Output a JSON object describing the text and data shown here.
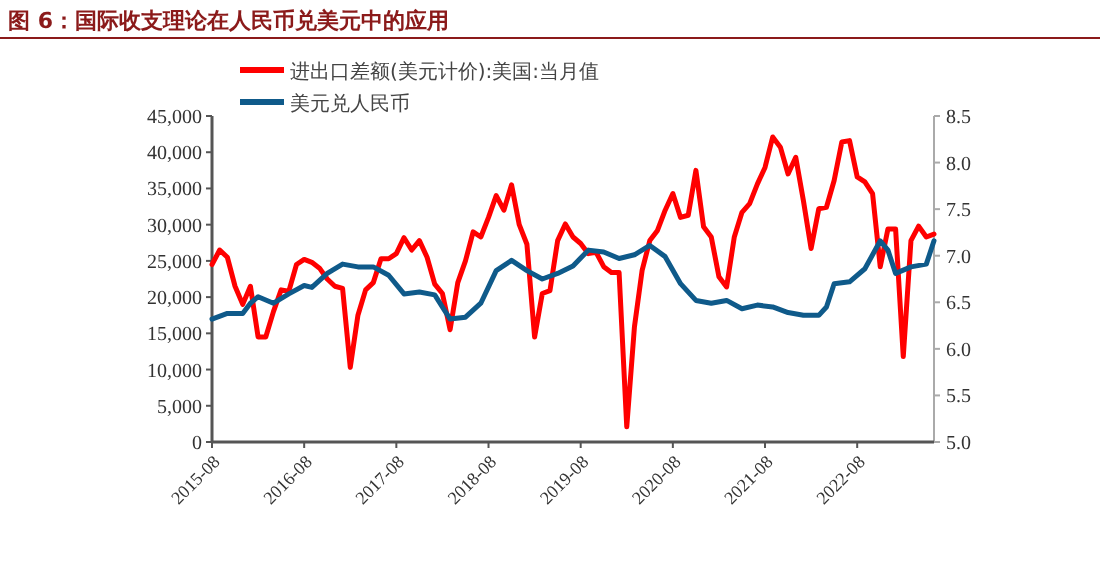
{
  "chart_data": {
    "type": "line",
    "title": "图 6：国际收支理论在人民币兑美元中的应用",
    "legend": "top",
    "grid": false,
    "marker": "none",
    "line_style": "solid",
    "xlim": [
      "2015-08",
      "2023-06"
    ],
    "xticks": [
      "2015-08",
      "2016-08",
      "2017-08",
      "2018-08",
      "2019-08",
      "2020-08",
      "2021-08",
      "2022-08"
    ],
    "ylim": [
      0,
      45000
    ],
    "yticks": [
      0,
      {
        "value": 5000,
        "label": "5,000"
      },
      {
        "value": 10000,
        "label": "10,000"
      },
      {
        "value": 15000,
        "label": "15,000"
      },
      {
        "value": 20000,
        "label": "20,000"
      },
      {
        "value": 25000,
        "label": "25,000"
      },
      {
        "value": 30000,
        "label": "30,000"
      },
      {
        "value": 35000,
        "label": "35,000"
      },
      {
        "value": 40000,
        "label": "40,000"
      },
      {
        "value": 45000,
        "label": "45,000"
      }
    ],
    "y2lim": [
      5.0,
      8.5
    ],
    "y2ticks": [
      {
        "value": 5.0,
        "label": "5.0"
      },
      {
        "value": 5.5,
        "label": "5.5"
      },
      {
        "value": 6.0,
        "label": "6.0"
      },
      {
        "value": 6.5,
        "label": "6.5"
      },
      {
        "value": 7.0,
        "label": "7.0"
      },
      {
        "value": 7.5,
        "label": "7.5"
      },
      {
        "value": 8.0,
        "label": "8.0"
      },
      {
        "value": 8.5,
        "label": "8.5"
      }
    ],
    "series": [
      {
        "name": "进出口差额(美元计价):美国:当月值",
        "color": "#ff0000",
        "x": [
          "2015-08",
          "2015-09",
          "2015-10",
          "2015-11",
          "2015-12",
          "2016-01",
          "2016-02",
          "2016-03",
          "2016-04",
          "2016-05",
          "2016-06",
          "2016-07",
          "2016-08",
          "2016-09",
          "2016-10",
          "2016-11",
          "2016-12",
          "2017-01",
          "2017-02",
          "2017-03",
          "2017-04",
          "2017-05",
          "2017-06",
          "2017-07",
          "2017-08",
          "2017-09",
          "2017-10",
          "2017-11",
          "2017-12",
          "2018-01",
          "2018-02",
          "2018-03",
          "2018-04",
          "2018-05",
          "2018-06",
          "2018-07",
          "2018-08",
          "2018-09",
          "2018-10",
          "2018-11",
          "2018-12",
          "2019-01",
          "2019-02",
          "2019-03",
          "2019-04",
          "2019-05",
          "2019-06",
          "2019-07",
          "2019-08",
          "2019-09",
          "2019-10",
          "2019-11",
          "2019-12",
          "2020-01",
          "2020-02",
          "2020-03",
          "2020-04",
          "2020-05",
          "2020-06",
          "2020-07",
          "2020-08",
          "2020-09",
          "2020-10",
          "2020-11",
          "2020-12",
          "2021-01",
          "2021-02",
          "2021-03",
          "2021-04",
          "2021-05",
          "2021-06",
          "2021-07",
          "2021-08",
          "2021-09",
          "2021-10",
          "2021-11",
          "2021-12",
          "2022-01",
          "2022-02",
          "2022-03",
          "2022-04",
          "2022-05",
          "2022-06",
          "2022-07",
          "2022-08",
          "2022-09",
          "2022-10",
          "2022-11",
          "2022-12",
          "2023-01",
          "2023-02",
          "2023-03",
          "2023-04",
          "2023-05",
          "2023-06"
        ],
        "values": [
          24500,
          26500,
          25500,
          21500,
          19000,
          21500,
          14500,
          14500,
          18000,
          21000,
          20800,
          24500,
          25200,
          24800,
          24000,
          22500,
          21500,
          21200,
          10300,
          17500,
          21000,
          22000,
          25300,
          25300,
          26000,
          28200,
          26500,
          27800,
          25500,
          21800,
          20500,
          15500,
          22000,
          25000,
          29000,
          28300,
          31000,
          34000,
          32000,
          35500,
          30000,
          27300,
          14500,
          20500,
          20900,
          27800,
          30100,
          28300,
          27400,
          26000,
          26200,
          24200,
          23400,
          23400,
          2100,
          15900,
          23700,
          27800,
          29200,
          32000,
          34300,
          31000,
          31300,
          37500,
          29700,
          28300,
          22800,
          21400,
          28300,
          31700,
          32900,
          35600,
          37900,
          42100,
          40700,
          37000,
          39300,
          33300,
          26700,
          32200,
          32400,
          36100,
          41400,
          41600,
          36600,
          35900,
          34300,
          24200,
          29400,
          29400,
          11800,
          27800,
          29800,
          28300,
          28700
        ]
      },
      {
        "name": "美元兑人民币",
        "color": "#0f5a8a",
        "axis": "y2",
        "x": [
          "2015-08",
          "2015-10",
          "2015-12",
          "2016-01",
          "2016-02",
          "2016-04",
          "2016-06",
          "2016-08",
          "2016-09",
          "2016-11",
          "2017-01",
          "2017-03",
          "2017-05",
          "2017-07",
          "2017-09",
          "2017-11",
          "2018-01",
          "2018-03",
          "2018-05",
          "2018-07",
          "2018-09",
          "2018-11",
          "2019-01",
          "2019-03",
          "2019-05",
          "2019-07",
          "2019-09",
          "2019-11",
          "2020-01",
          "2020-03",
          "2020-05",
          "2020-07",
          "2020-09",
          "2020-11",
          "2021-01",
          "2021-03",
          "2021-05",
          "2021-07",
          "2021-09",
          "2021-11",
          "2022-01",
          "2022-03",
          "2022-04",
          "2022-05",
          "2022-07",
          "2022-09",
          "2022-11",
          "2022-12",
          "2023-01",
          "2023-03",
          "2023-05",
          "2023-06"
        ],
        "values": [
          6.32,
          6.38,
          6.38,
          6.49,
          6.56,
          6.49,
          6.59,
          6.68,
          6.66,
          6.81,
          6.91,
          6.88,
          6.88,
          6.79,
          6.59,
          6.61,
          6.58,
          6.32,
          6.34,
          6.49,
          6.84,
          6.95,
          6.84,
          6.75,
          6.81,
          6.89,
          7.06,
          7.04,
          6.97,
          7.01,
          7.11,
          6.99,
          6.7,
          6.52,
          6.49,
          6.52,
          6.43,
          6.47,
          6.45,
          6.39,
          6.36,
          6.36,
          6.45,
          6.7,
          6.72,
          6.86,
          7.16,
          7.06,
          6.81,
          6.88,
          6.91,
          7.16
        ]
      }
    ]
  }
}
